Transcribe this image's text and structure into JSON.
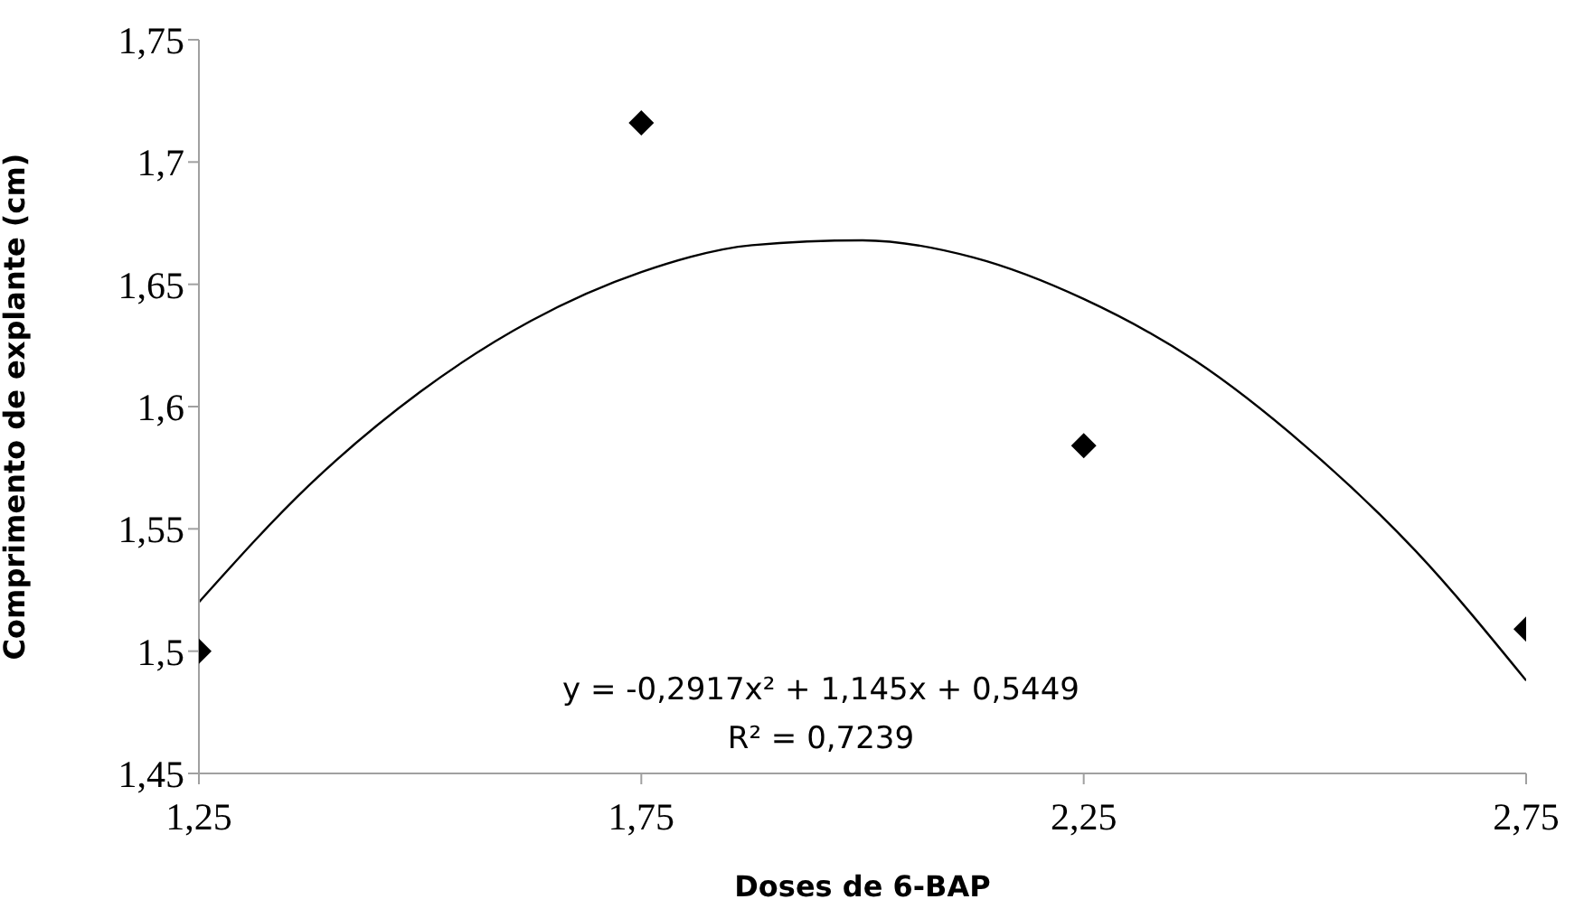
{
  "chart_data": {
    "type": "scatter",
    "xlabel": "Doses de 6-BAP",
    "ylabel": "Comprimento de explante (cm)",
    "xlim": [
      1.25,
      2.75
    ],
    "xticks": [
      {
        "value": 1.25,
        "label": "1,25"
      },
      {
        "value": 1.75,
        "label": "1,75"
      },
      {
        "value": 2.25,
        "label": "2,25"
      },
      {
        "value": 2.75,
        "label": "2,75"
      }
    ],
    "ylim": [
      1.45,
      1.75
    ],
    "yticks": [
      {
        "value": 1.45,
        "label": "1,45"
      },
      {
        "value": 1.5,
        "label": "1,5"
      },
      {
        "value": 1.55,
        "label": "1,55"
      },
      {
        "value": 1.6,
        "label": "1,6"
      },
      {
        "value": 1.65,
        "label": "1,65"
      },
      {
        "value": 1.7,
        "label": "1,7"
      },
      {
        "value": 1.75,
        "label": "1,75"
      }
    ],
    "grid": false,
    "legend": false,
    "series": [
      {
        "color": "#000000",
        "marker": "diamond",
        "x": [
          1.25,
          1.75,
          2.25,
          2.75
        ],
        "values": [
          1.5,
          1.716,
          1.584,
          1.509
        ]
      },
      {
        "type": "line",
        "color": "#000000",
        "marker": "none",
        "line_style": "solid",
        "x": [
          1.25,
          1.375,
          1.5,
          1.625,
          1.75,
          1.875,
          2.0,
          2.125,
          2.25,
          2.375,
          2.5,
          2.625,
          2.75
        ],
        "values": [
          1.52,
          1.568,
          1.606,
          1.635,
          1.655,
          1.666,
          1.668,
          1.661,
          1.644,
          1.619,
          1.584,
          1.541,
          1.488
        ]
      }
    ],
    "annotations": [
      "y = -0,2917x² + 1,145x + 0,5449",
      "R² = 0,7239"
    ]
  }
}
